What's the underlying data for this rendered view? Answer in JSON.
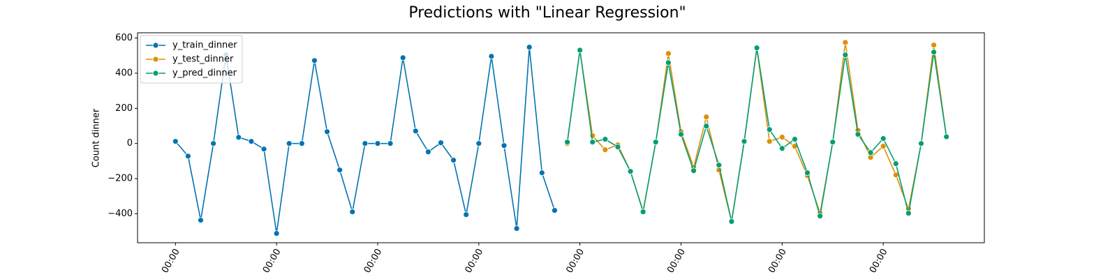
{
  "chart_data": {
    "type": "line",
    "title": "Predictions with \"Linear Regression\"",
    "y_label": "Count dinner",
    "x": [
      0,
      1,
      2,
      3,
      4,
      5,
      6,
      7,
      8,
      9,
      10,
      11,
      12,
      13,
      14,
      15,
      16,
      17,
      18,
      19,
      20,
      21,
      22,
      23,
      24,
      25,
      26,
      27,
      28,
      29,
      30,
      31,
      32,
      33,
      34,
      35,
      36,
      37,
      38,
      39,
      40,
      41,
      42,
      43,
      44,
      45,
      46,
      47,
      48,
      49,
      50,
      51,
      52,
      53,
      54,
      55,
      56,
      57,
      58,
      59,
      60,
      61
    ],
    "series": [
      {
        "name": "y_train_dinner",
        "color": "#0173b2",
        "values": [
          12,
          -72,
          -437,
          0,
          505,
          35,
          12,
          -32,
          -512,
          0,
          0,
          472,
          67,
          -151,
          -389,
          0,
          0,
          0,
          488,
          71,
          -48,
          4,
          -95,
          -405,
          0,
          496,
          -12,
          -484,
          548,
          -167,
          -381,
          null,
          null,
          null,
          null,
          null,
          null,
          null,
          null,
          null,
          null,
          null,
          null,
          null,
          null,
          null,
          null,
          null,
          null,
          null,
          null,
          null,
          null,
          null,
          null,
          null,
          null,
          null,
          null,
          null,
          null,
          null
        ]
      },
      {
        "name": "y_test_dinner",
        "color": "#de8f05",
        "values": [
          null,
          null,
          null,
          null,
          null,
          null,
          null,
          null,
          null,
          null,
          null,
          null,
          null,
          null,
          null,
          null,
          null,
          null,
          null,
          null,
          null,
          null,
          null,
          null,
          null,
          null,
          null,
          null,
          null,
          null,
          null,
          0,
          531,
          44,
          -36,
          -8,
          -159,
          -385,
          4,
          512,
          67,
          -135,
          151,
          -151,
          -444,
          8,
          540,
          12,
          36,
          -16,
          -183,
          -397,
          4,
          575,
          75,
          -79,
          -16,
          -179,
          -373,
          0,
          560,
          38
        ]
      },
      {
        "name": "y_pred_dinner",
        "color": "#029e73",
        "values": [
          null,
          null,
          null,
          null,
          null,
          null,
          null,
          null,
          null,
          null,
          null,
          null,
          null,
          null,
          null,
          null,
          null,
          null,
          null,
          null,
          null,
          null,
          null,
          null,
          null,
          null,
          null,
          null,
          null,
          null,
          null,
          8,
          531,
          8,
          24,
          -20,
          -159,
          -389,
          8,
          460,
          52,
          -155,
          99,
          -123,
          -444,
          12,
          544,
          79,
          -28,
          24,
          -167,
          -413,
          8,
          504,
          52,
          -52,
          28,
          -115,
          -397,
          0,
          520,
          38
        ]
      }
    ],
    "xlim": [
      -3,
      64
    ],
    "xticks": [
      {
        "value": 0,
        "label": "00:00"
      },
      {
        "value": 8,
        "label": "00:00"
      },
      {
        "value": 16,
        "label": "00:00"
      },
      {
        "value": 24,
        "label": "00:00"
      },
      {
        "value": 32,
        "label": "00:00"
      },
      {
        "value": 40,
        "label": "00:00"
      },
      {
        "value": 48,
        "label": "00:00"
      },
      {
        "value": 56,
        "label": "00:00"
      }
    ],
    "ylim": [
      -565,
      630
    ],
    "yticks": [
      {
        "value": -400,
        "label": "−400"
      },
      {
        "value": -200,
        "label": "−200"
      },
      0,
      200,
      400,
      600
    ],
    "legend": "upper-left"
  }
}
